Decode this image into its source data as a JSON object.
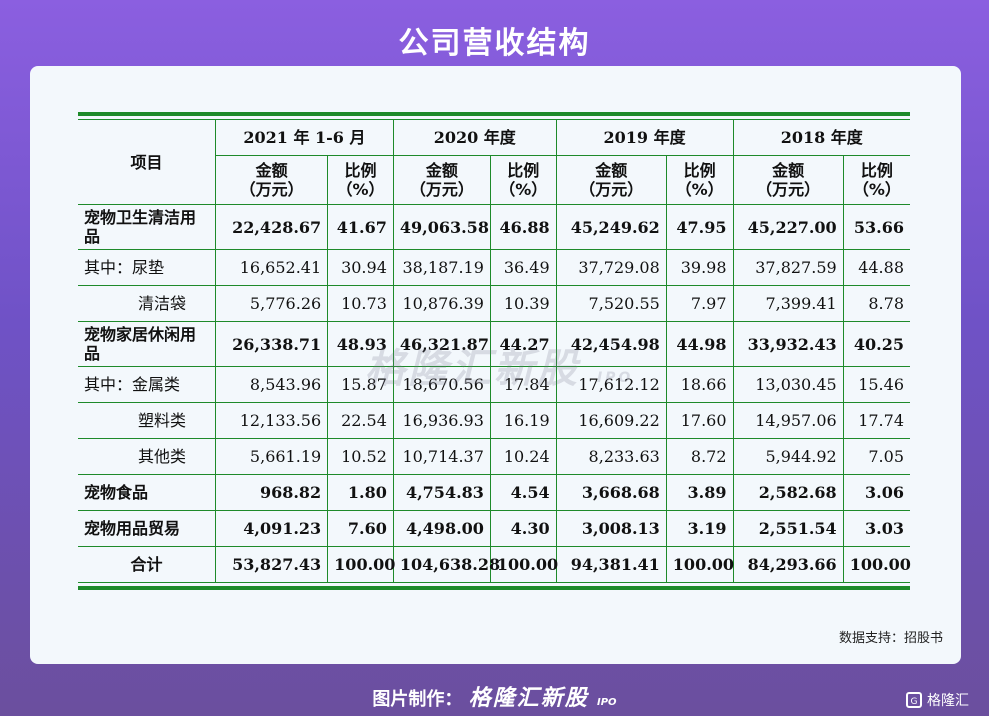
{
  "title": "公司营收结构",
  "table": {
    "header_item": "项目",
    "periods": [
      "2021 年 1-6 月",
      "2020 年度",
      "2019 年度",
      "2018 年度"
    ],
    "amount_label": "金额\n（万元）",
    "ratio_label": "比例\n（%）",
    "rows": [
      {
        "label": "宠物卫生清洁用品",
        "style": "main",
        "values": [
          "22,428.67",
          "41.67",
          "49,063.58",
          "46.88",
          "45,249.62",
          "47.95",
          "45,227.00",
          "53.66"
        ]
      },
      {
        "label": "其中：尿垫",
        "style": "sub",
        "values": [
          "16,652.41",
          "30.94",
          "38,187.19",
          "36.49",
          "37,729.08",
          "39.98",
          "37,827.59",
          "44.88"
        ]
      },
      {
        "label": "清洁袋",
        "style": "indent",
        "values": [
          "5,776.26",
          "10.73",
          "10,876.39",
          "10.39",
          "7,520.55",
          "7.97",
          "7,399.41",
          "8.78"
        ]
      },
      {
        "label": "宠物家居休闲用品",
        "style": "main",
        "values": [
          "26,338.71",
          "48.93",
          "46,321.87",
          "44.27",
          "42,454.98",
          "44.98",
          "33,932.43",
          "40.25"
        ]
      },
      {
        "label": "其中：金属类",
        "style": "sub",
        "values": [
          "8,543.96",
          "15.87",
          "18,670.56",
          "17.84",
          "17,612.12",
          "18.66",
          "13,030.45",
          "15.46"
        ]
      },
      {
        "label": "塑料类",
        "style": "indent",
        "values": [
          "12,133.56",
          "22.54",
          "16,936.93",
          "16.19",
          "16,609.22",
          "17.60",
          "14,957.06",
          "17.74"
        ]
      },
      {
        "label": "其他类",
        "style": "indent",
        "values": [
          "5,661.19",
          "10.52",
          "10,714.37",
          "10.24",
          "8,233.63",
          "8.72",
          "5,944.92",
          "7.05"
        ]
      },
      {
        "label": "宠物食品",
        "style": "main",
        "values": [
          "968.82",
          "1.80",
          "4,754.83",
          "4.54",
          "3,668.68",
          "3.89",
          "2,582.68",
          "3.06"
        ]
      },
      {
        "label": "宠物用品贸易",
        "style": "main",
        "values": [
          "4,091.23",
          "7.60",
          "4,498.00",
          "4.30",
          "3,008.13",
          "3.19",
          "2,551.54",
          "3.03"
        ]
      },
      {
        "label": "合计",
        "style": "total",
        "values": [
          "53,827.43",
          "100.00",
          "104,638.28",
          "100.00",
          "94,381.41",
          "100.00",
          "84,293.66",
          "100.00"
        ]
      }
    ]
  },
  "watermark": "格隆汇新股",
  "watermark_ipo": "IPO",
  "source": "数据支持：招股书",
  "footer": {
    "prefix": "图片制作：",
    "brand": "格隆汇新股",
    "ipo": "IPO"
  },
  "corner": {
    "logo_text": "G",
    "name": "格隆汇"
  },
  "colors": {
    "border": "#1e8a2a",
    "card": "#f3f8fc"
  }
}
